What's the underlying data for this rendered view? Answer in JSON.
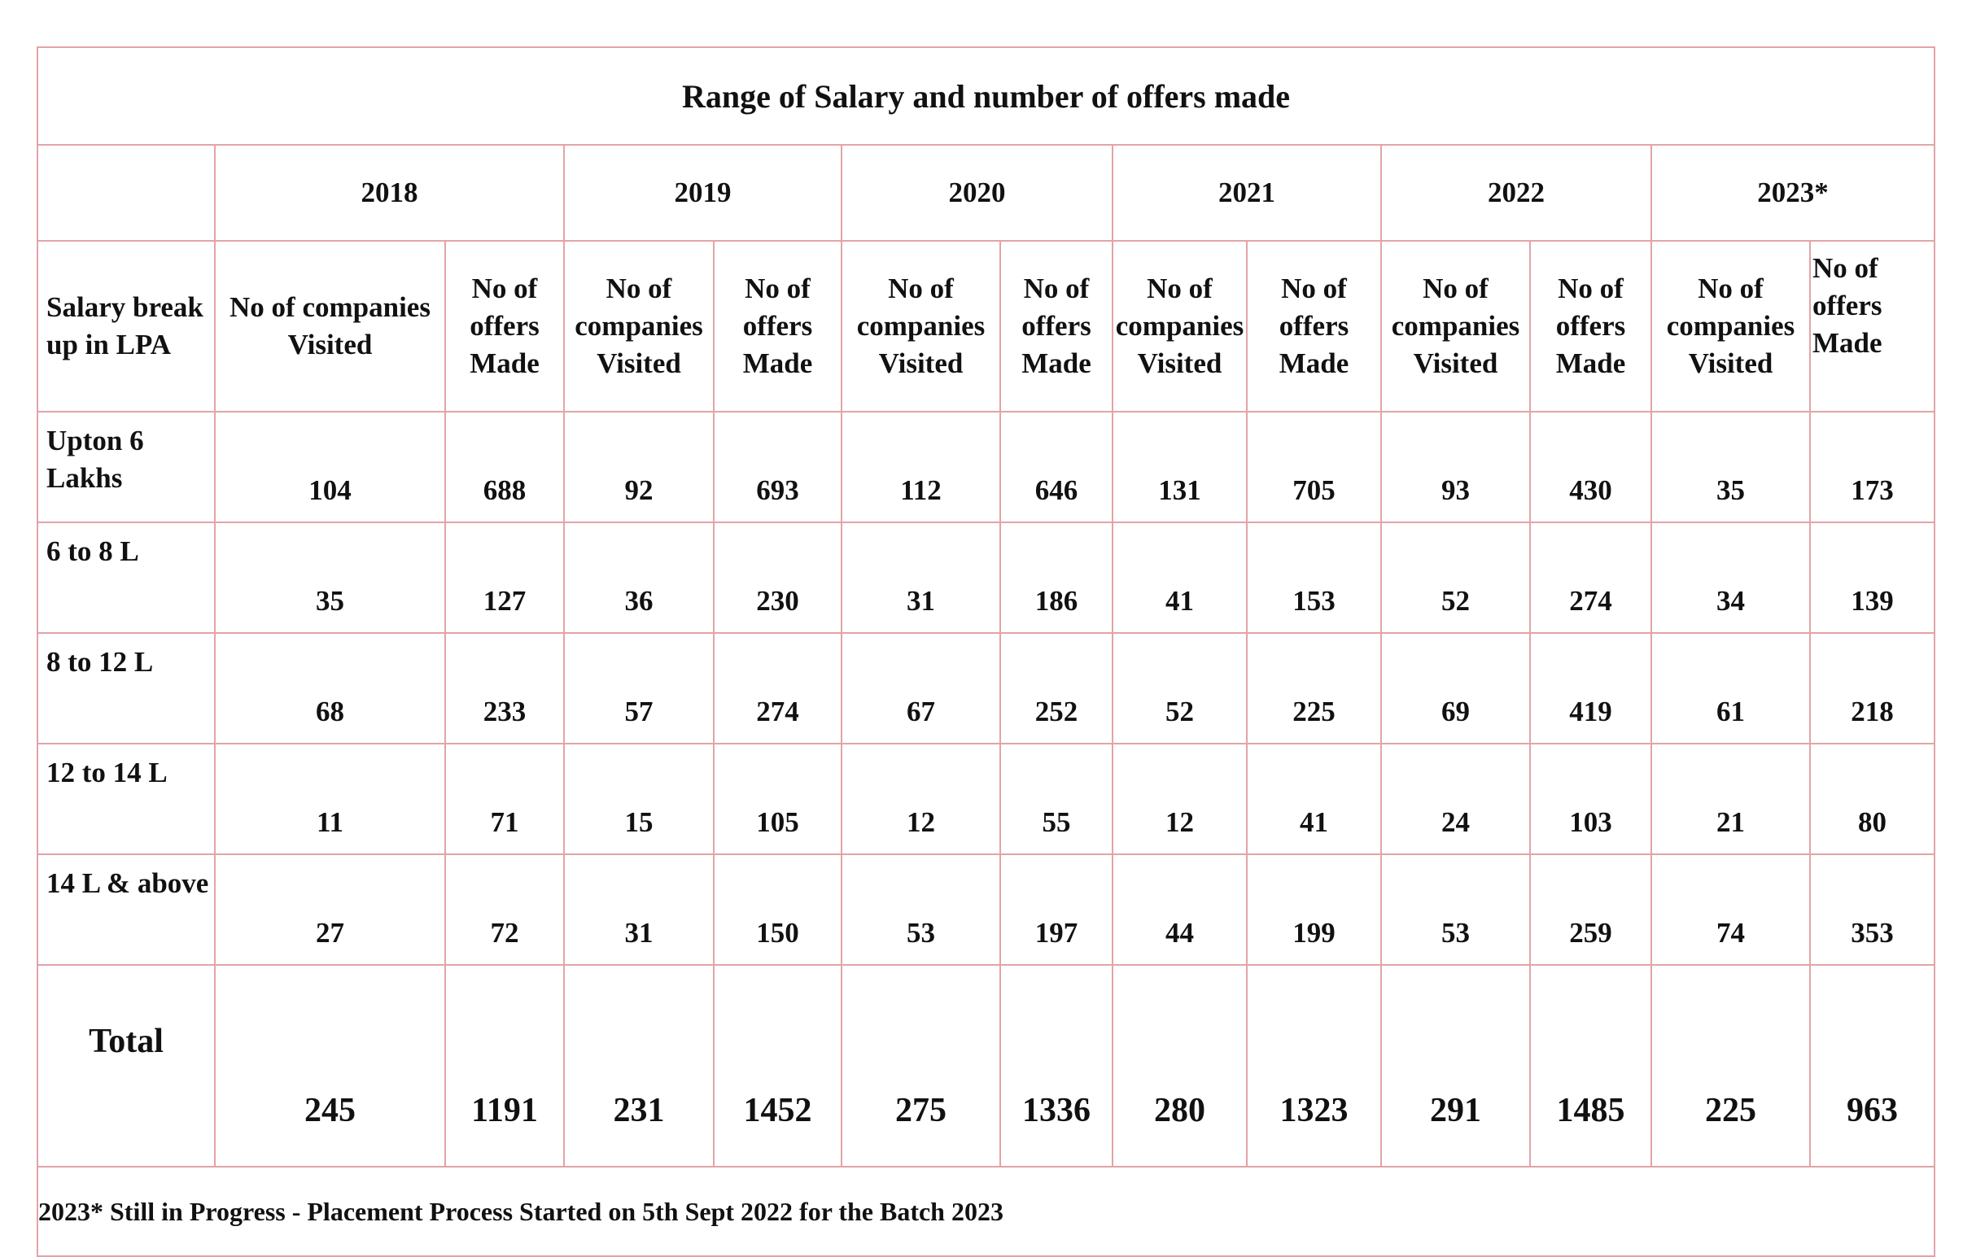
{
  "title": "Range of Salary and number of offers made",
  "corner_label": "",
  "row_header_label": "Salary break up in LPA",
  "years": [
    "2018",
    "2019",
    "2020",
    "2021",
    "2022",
    "2023*"
  ],
  "sub_headers": {
    "first_companies": "No of companies Visited",
    "companies": "No of\ncompanies\nVisited",
    "offers": "No of\noffers\nMade"
  },
  "rows": [
    {
      "label": "Upton 6\nLakhs",
      "values": [
        "104",
        "688",
        "92",
        "693",
        "112",
        "646",
        "131",
        "705",
        "93",
        "430",
        "35",
        "173"
      ]
    },
    {
      "label": "6 to 8 L",
      "values": [
        "35",
        "127",
        "36",
        "230",
        "31",
        "186",
        "41",
        "153",
        "52",
        "274",
        "34",
        "139"
      ]
    },
    {
      "label": "8 to 12 L",
      "values": [
        "68",
        "233",
        "57",
        "274",
        "67",
        "252",
        "52",
        "225",
        "69",
        "419",
        "61",
        "218"
      ]
    },
    {
      "label": "12 to 14 L",
      "values": [
        "11",
        "71",
        "15",
        "105",
        "12",
        "55",
        "12",
        "41",
        "24",
        "103",
        "21",
        "80"
      ]
    },
    {
      "label": "14 L & above",
      "values": [
        "27",
        "72",
        "31",
        "150",
        "53",
        "197",
        "44",
        "199",
        "53",
        "259",
        "74",
        "353"
      ]
    }
  ],
  "total": {
    "label": "Total",
    "values": [
      "245",
      "1191",
      "231",
      "1452",
      "275",
      "1336",
      "280",
      "1323",
      "291",
      "1485",
      "225",
      "963"
    ]
  },
  "footnote": "2023* Still in Progress - Placement Process Started on 5th Sept 2022 for the Batch 2023",
  "colors": {
    "border": "#e3a3a8",
    "text": "#111111",
    "background": "#ffffff"
  }
}
